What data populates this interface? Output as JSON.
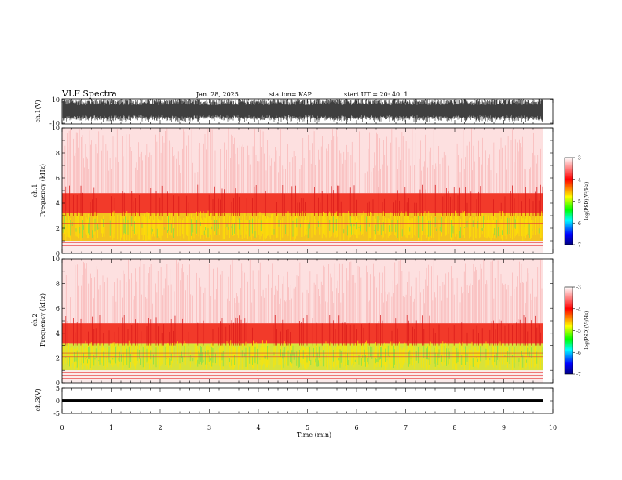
{
  "header": {
    "title": "VLF Spectra",
    "date": "Jan. 28, 2025",
    "station": "station= KAP",
    "start": "start UT = 20: 40: 1"
  },
  "chart_data": [
    {
      "type": "line",
      "name": "waveform-ch1",
      "ylabel": "ch.1(V)",
      "ylim": [
        -10,
        10
      ],
      "yticks": [
        "10",
        "-10"
      ],
      "xlim": [
        0,
        10
      ],
      "style": "dense oscillation spanning roughly -7 to 10 V, 0 to 9.8 min"
    },
    {
      "type": "heatmap",
      "name": "spectrogram-ch1",
      "ylabel": "ch.1\nFrequency (kHz)",
      "ylim": [
        0,
        10
      ],
      "yticks": [
        0,
        2,
        4,
        6,
        8,
        10
      ],
      "xlim": [
        0,
        10
      ],
      "x_end": 9.8,
      "bands": [
        {
          "from": 0,
          "to": 0.3,
          "level": "pale"
        },
        {
          "from": 0.3,
          "to": 1.0,
          "level": "red-lines"
        },
        {
          "from": 1.0,
          "to": 3.2,
          "level": "yellow-green"
        },
        {
          "from": 3.2,
          "to": 4.8,
          "level": "red"
        },
        {
          "from": 4.8,
          "to": 10,
          "level": "speckled-pink"
        }
      ],
      "colorbar": {
        "label": "log(PSD)(V²/Hz)",
        "ticks": [
          "-3",
          "-4",
          "-5",
          "-6",
          "-7"
        ],
        "range": [
          -7,
          -3
        ]
      }
    },
    {
      "type": "heatmap",
      "name": "spectrogram-ch2",
      "ylabel": "ch.2\nFrequency (kHz)",
      "ylim": [
        0,
        10
      ],
      "yticks": [
        0,
        2,
        4,
        6,
        8,
        10
      ],
      "xlim": [
        0,
        10
      ],
      "x_end": 9.8,
      "bands": [
        {
          "from": 0,
          "to": 0.5,
          "level": "pale"
        },
        {
          "from": 0.5,
          "to": 3.2,
          "level": "yellow-green"
        },
        {
          "from": 3.2,
          "to": 4.5,
          "level": "red"
        },
        {
          "from": 4.5,
          "to": 10,
          "level": "speckled-pink"
        }
      ],
      "colorbar": {
        "label": "log(PSD)(V²/Hz)",
        "ticks": [
          "-3",
          "-4",
          "-5",
          "-6",
          "-7"
        ],
        "range": [
          -7,
          -3
        ]
      }
    },
    {
      "type": "line",
      "name": "waveform-ch3",
      "ylabel": "ch.3(V)",
      "ylim": [
        -5,
        5
      ],
      "yticks": [
        "5",
        "0",
        "-5"
      ],
      "xlim": [
        0,
        10
      ],
      "xticks": [
        "0",
        "1",
        "2",
        "3",
        "4",
        "5",
        "6",
        "7",
        "8",
        "9",
        "10"
      ],
      "xlabel": "Time (min)",
      "style": "thin band centred near 0 V from 0 to 9.8 min"
    }
  ],
  "colors": {
    "colorbar_stops": [
      "#ffffff",
      "#ff0000",
      "#ffff00",
      "#00ff00",
      "#00ffff",
      "#0000ff",
      "#000080"
    ],
    "background": "#ffffff",
    "axis": "#000000"
  }
}
